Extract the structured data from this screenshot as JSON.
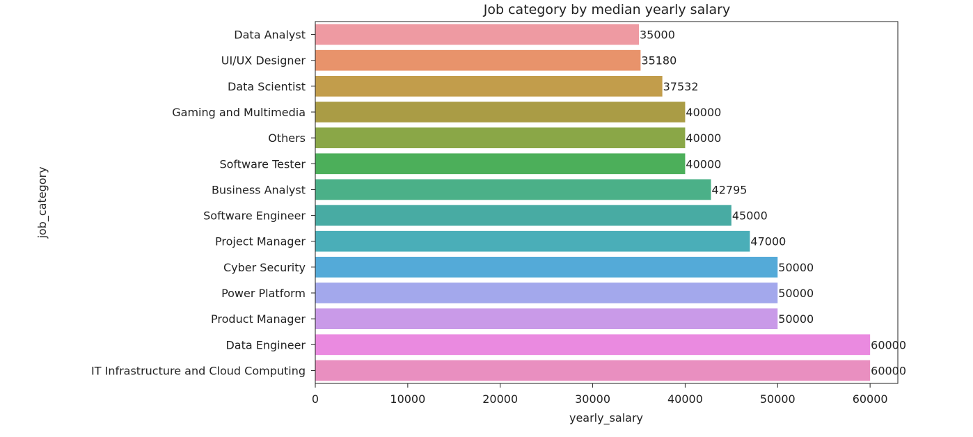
{
  "chart_data": {
    "type": "bar",
    "orientation": "horizontal",
    "title": "Job category by median yearly salary",
    "xlabel": "yearly_salary",
    "ylabel": "job_category",
    "xlim": [
      0,
      63000
    ],
    "xticks": [
      0,
      10000,
      20000,
      30000,
      40000,
      50000,
      60000
    ],
    "grid": false,
    "legend": "none",
    "categories": [
      "Data Analyst",
      "UI/UX Designer",
      "Data Scientist",
      "Gaming and Multimedia",
      "Others",
      "Software Tester",
      "Business Analyst",
      "Software Engineer",
      "Project Manager",
      "Cyber Security",
      "Power Platform",
      "Product Manager",
      "Data Engineer",
      "IT Infrastructure and Cloud Computing"
    ],
    "values": [
      35000,
      35180,
      37532,
      40000,
      40000,
      40000,
      42795,
      45000,
      47000,
      50000,
      50000,
      50000,
      60000,
      60000
    ],
    "data_labels": [
      "35000",
      "35180",
      "37532",
      "40000",
      "40000",
      "40000",
      "42795",
      "45000",
      "47000",
      "50000",
      "50000",
      "50000",
      "60000",
      "60000"
    ],
    "colors": [
      "#ee9aa2",
      "#e8936b",
      "#c29d4b",
      "#aa9c45",
      "#8aa747",
      "#4caf5a",
      "#4bb088",
      "#48aba3",
      "#4aaeb8",
      "#54aad8",
      "#a3a8ec",
      "#c99ae8",
      "#ea8ae0",
      "#e98fc0"
    ]
  }
}
